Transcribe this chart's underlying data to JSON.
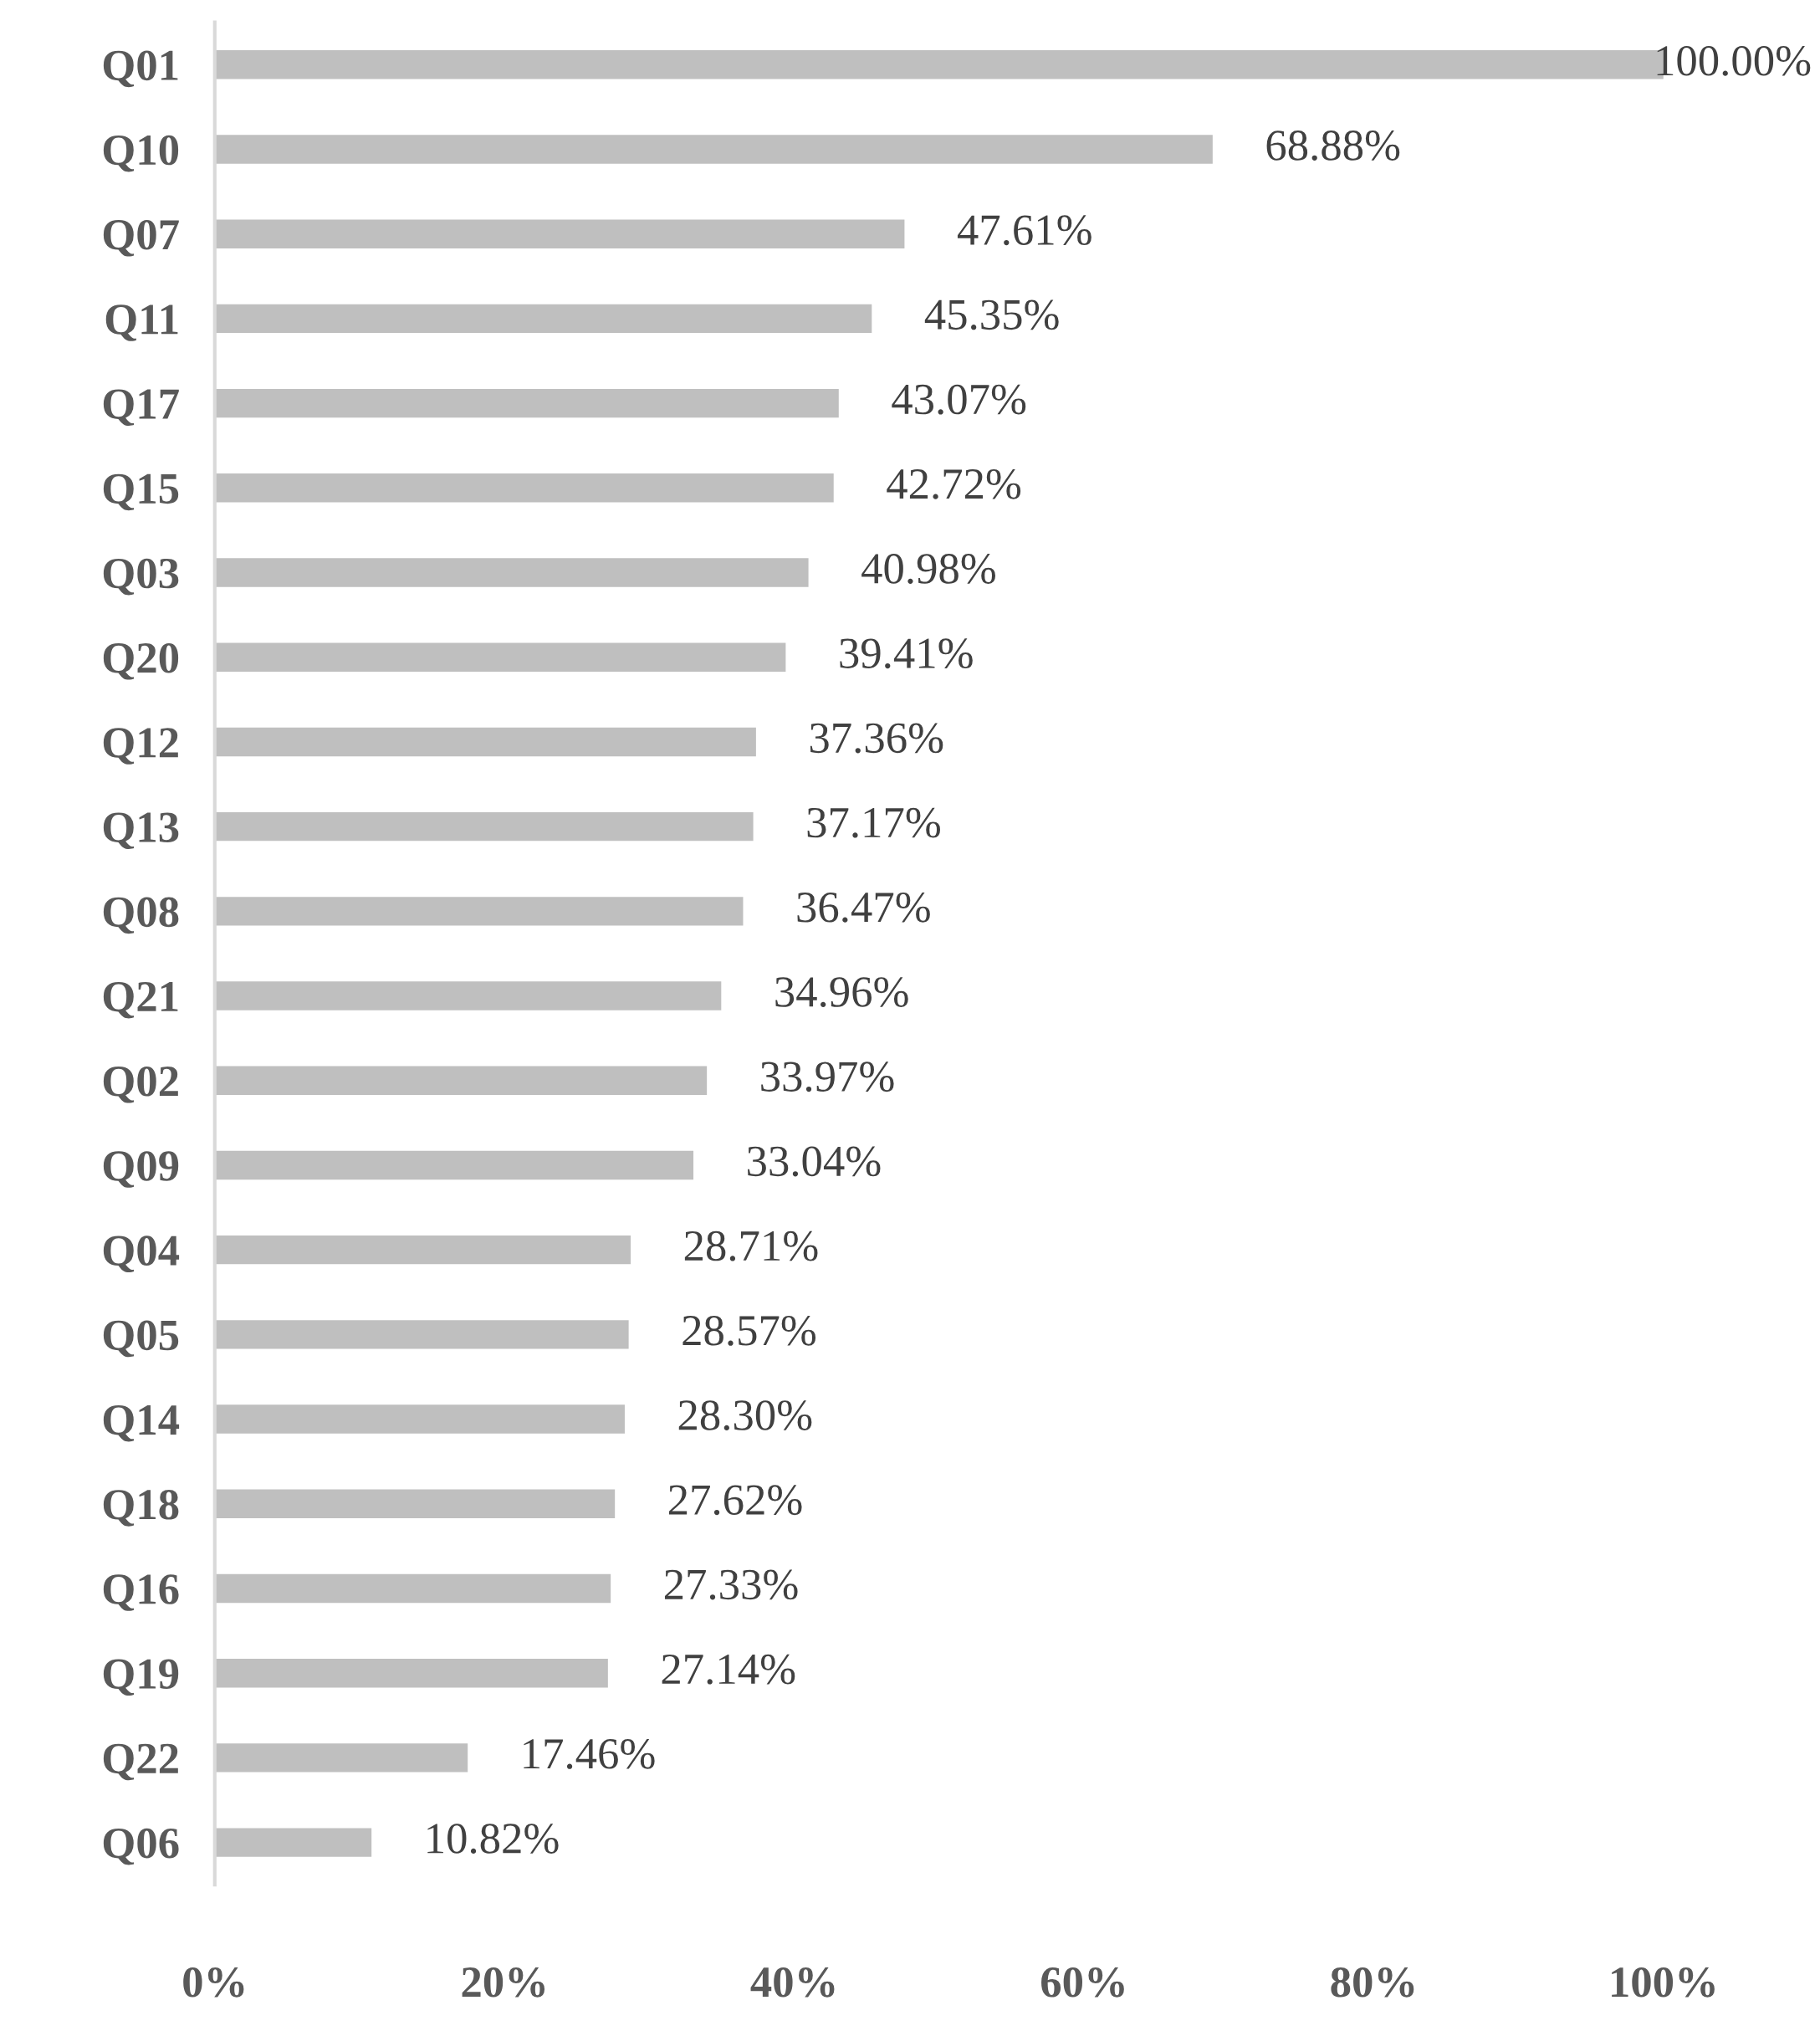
{
  "chart_data": {
    "type": "bar",
    "orientation": "horizontal",
    "categories": [
      "Q01",
      "Q10",
      "Q07",
      "Q11",
      "Q17",
      "Q15",
      "Q03",
      "Q20",
      "Q12",
      "Q13",
      "Q08",
      "Q21",
      "Q02",
      "Q09",
      "Q04",
      "Q05",
      "Q14",
      "Q18",
      "Q16",
      "Q19",
      "Q22",
      "Q06"
    ],
    "values": [
      100.0,
      68.88,
      47.61,
      45.35,
      43.07,
      42.72,
      40.98,
      39.41,
      37.36,
      37.17,
      36.47,
      34.96,
      33.97,
      33.04,
      28.71,
      28.57,
      28.3,
      27.62,
      27.33,
      27.14,
      17.46,
      10.82
    ],
    "value_labels": [
      "100.00%",
      "68.88%",
      "47.61%",
      "45.35%",
      "43.07%",
      "42.72%",
      "40.98%",
      "39.41%",
      "37.36%",
      "37.17%",
      "36.47%",
      "34.96%",
      "33.97%",
      "33.04%",
      "28.71%",
      "28.57%",
      "28.30%",
      "27.62%",
      "27.33%",
      "27.14%",
      "17.46%",
      "10.82%"
    ],
    "color": "#bfbfbf",
    "xlim": [
      0,
      100
    ],
    "xticks": [
      {
        "value": 0,
        "label": "0%"
      },
      {
        "value": 20,
        "label": "20%"
      },
      {
        "value": 40,
        "label": "40%"
      },
      {
        "value": 60,
        "label": "60%"
      },
      {
        "value": 80,
        "label": "80%"
      },
      {
        "value": 100,
        "label": "100%"
      }
    ],
    "grid": false,
    "legend": false
  }
}
